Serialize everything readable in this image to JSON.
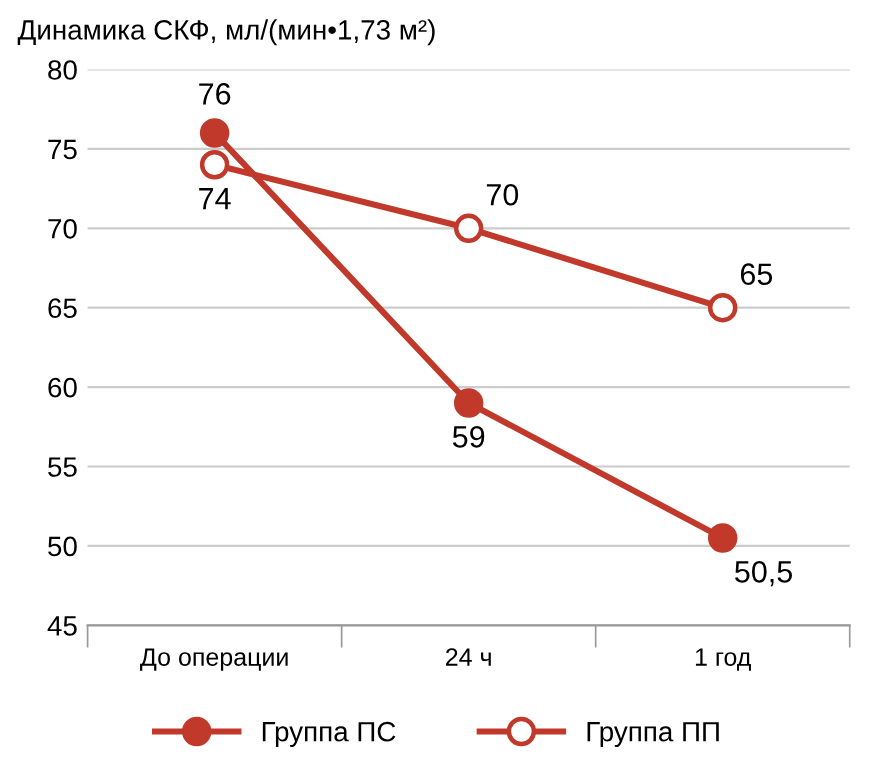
{
  "chart_data": {
    "type": "line",
    "title": "Динамика СКФ, мл/(мин•1,73 м²)",
    "categories": [
      "До операции",
      "24 ч",
      "1 год"
    ],
    "series": [
      {
        "name": "Группа ПС",
        "color": "#c0392b",
        "values": [
          76,
          59,
          50.5
        ],
        "value_labels": [
          "76",
          "59",
          "50,5"
        ]
      },
      {
        "name": "Группа ПП",
        "color": "#c0392b",
        "values": [
          74,
          70,
          65
        ],
        "value_labels": [
          "74",
          "70",
          "65"
        ]
      }
    ],
    "ylim": [
      45,
      80
    ],
    "yticks": [
      45,
      50,
      55,
      60,
      65,
      70,
      75,
      80
    ],
    "grid": "y",
    "legend": "bottom",
    "marker": "circle",
    "line_style": "solid"
  }
}
